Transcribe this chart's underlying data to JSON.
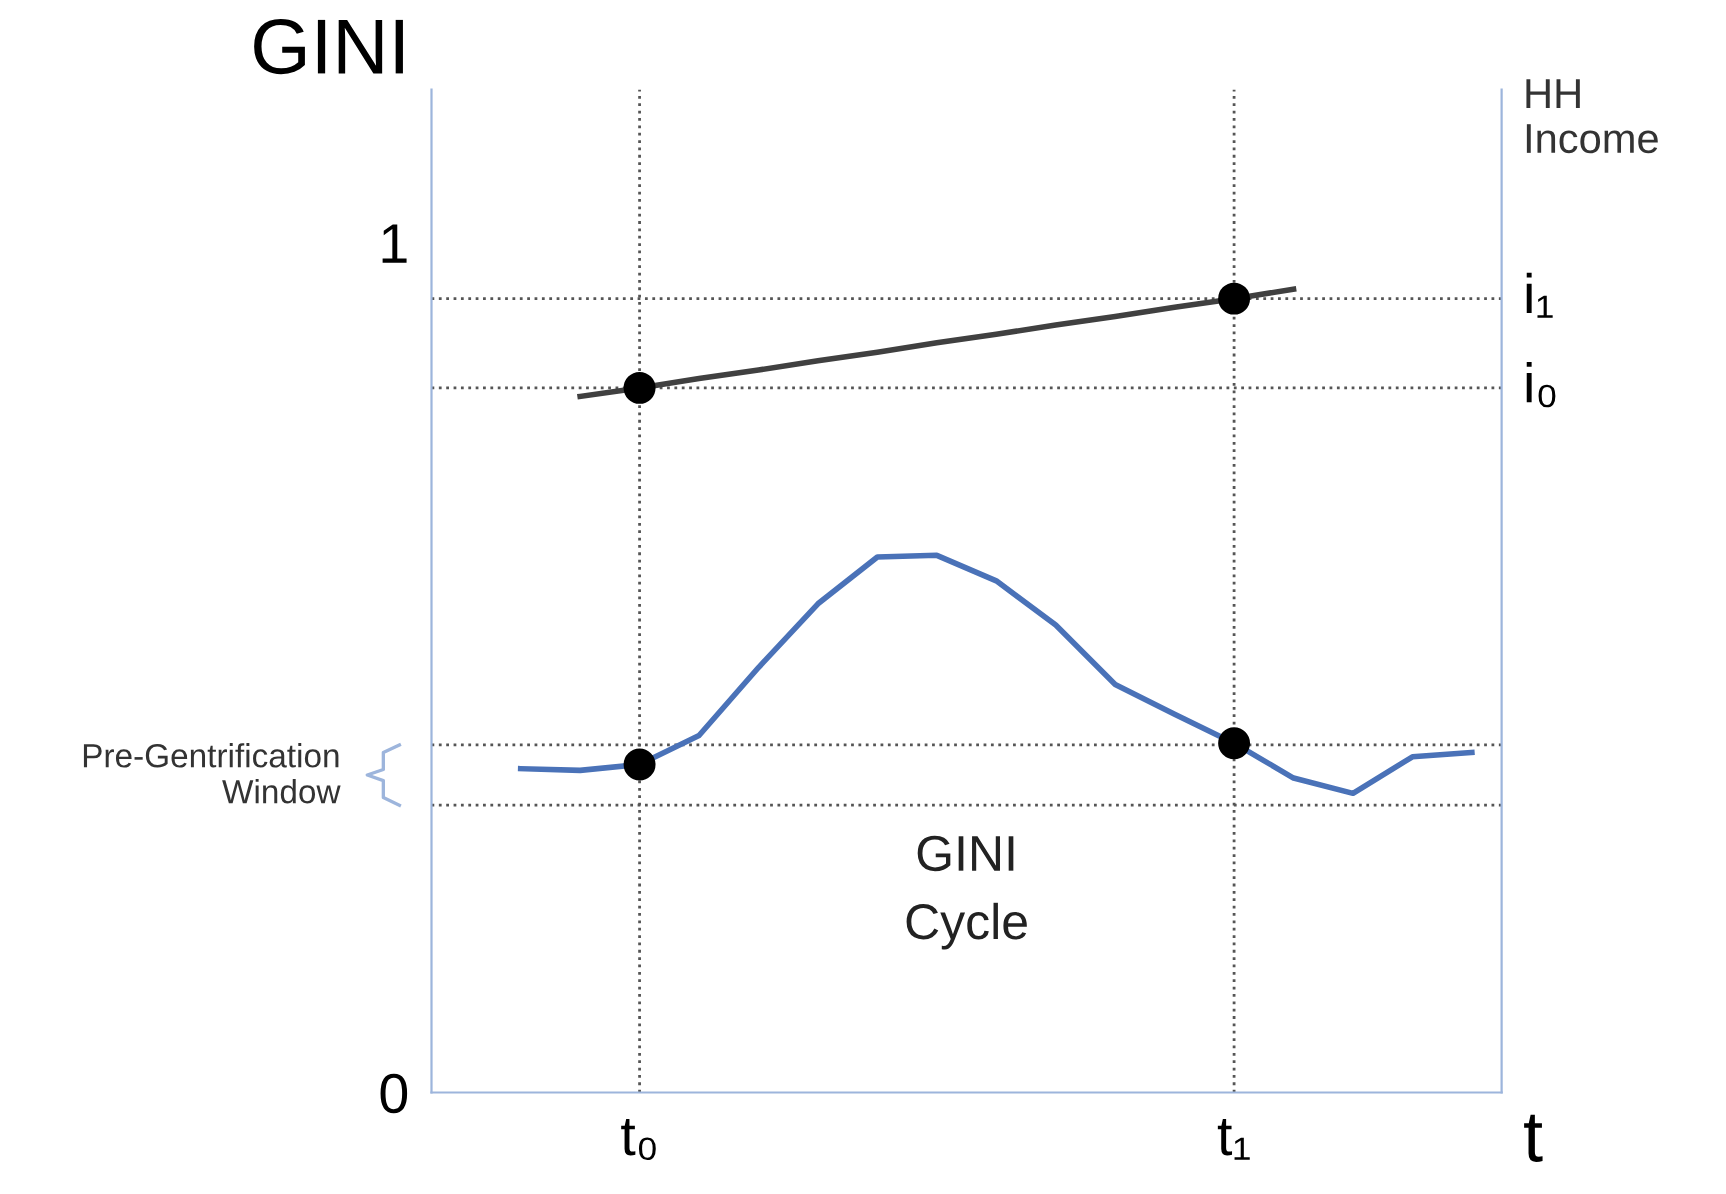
{
  "chart_data": {
    "type": "line",
    "ylabel": "GINI",
    "y2label": "HH Income",
    "xlabel": "t",
    "categories": [
      null,
      null,
      null,
      "t₀",
      null,
      null,
      null,
      null,
      null,
      null,
      null,
      null,
      null,
      "t₁",
      null,
      null,
      null,
      null
    ],
    "ylim": [
      0,
      1.18
    ],
    "yticks": [
      0,
      1
    ],
    "series": [
      {
        "color": "#4a72b8",
        "values": [
          null,
          0.381,
          0.379,
          0.386,
          0.42,
          0.5,
          0.575,
          0.63,
          0.632,
          0.602,
          0.55,
          0.48,
          0.445,
          0.411,
          0.37,
          0.352,
          0.395,
          0.4
        ]
      },
      {
        "color": "#404040",
        "values": [
          null,
          null,
          0.819,
          0.829,
          0.84,
          0.85,
          0.861,
          0.871,
          0.882,
          0.892,
          0.903,
          0.913,
          0.924,
          0.934,
          0.945,
          null,
          null,
          null
        ]
      },
      {
        "type": "scatter",
        "color": "#000000",
        "marker": "circle",
        "values": [
          null,
          null,
          null,
          0.386,
          null,
          null,
          null,
          null,
          null,
          null,
          null,
          null,
          null,
          0.411,
          null,
          null,
          null,
          null
        ]
      },
      {
        "type": "scatter",
        "color": "#000000",
        "marker": "circle",
        "values": [
          null,
          null,
          null,
          0.829,
          null,
          null,
          null,
          null,
          null,
          null,
          null,
          null,
          null,
          0.934,
          null,
          null,
          null,
          null
        ]
      }
    ],
    "ref_lines": [
      {
        "axis": "x",
        "value": "t₀",
        "line_style": "dotted",
        "color": "#555555"
      },
      {
        "axis": "x",
        "value": "t₁",
        "line_style": "dotted",
        "color": "#555555"
      },
      {
        "axis": "y",
        "value": 0.829,
        "label": "i₀",
        "line_style": "dotted",
        "color": "#555555"
      },
      {
        "axis": "y",
        "value": 0.934,
        "label": "i₁",
        "line_style": "dotted",
        "color": "#555555"
      },
      {
        "axis": "y",
        "value": 0.409,
        "line_style": "dotted",
        "color": "#555555"
      },
      {
        "axis": "y",
        "value": 0.338,
        "line_style": "dotted",
        "color": "#555555"
      }
    ],
    "annotations": [
      "GINI\nCycle",
      "Pre-Gentrification Window"
    ],
    "grid": false,
    "legend": false
  }
}
